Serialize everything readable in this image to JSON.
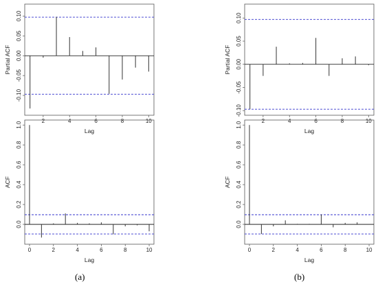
{
  "panel_labels": {
    "a": "(a)",
    "b": "(b)"
  },
  "colors": {
    "bars": "#333333",
    "confidence_band": "#3333cc",
    "axis": "#555555"
  },
  "chart_data": [
    {
      "id": "a-top",
      "type": "bar",
      "xlabel": "Lag",
      "ylabel": "Partial ACF",
      "xlim": [
        0.6,
        10.4
      ],
      "ylim": [
        -0.15,
        0.13
      ],
      "xticks": [
        2,
        4,
        6,
        8,
        10
      ],
      "yticks": [
        -0.1,
        -0.05,
        0.0,
        0.05,
        0.1
      ],
      "ytick_labels": [
        "-0.10",
        "-0.05",
        "0.00",
        "0.05",
        "0.10"
      ],
      "confidence": [
        0.097,
        -0.097
      ],
      "x": [
        1,
        2,
        3,
        4,
        5,
        6,
        7,
        8,
        9,
        10
      ],
      "values": [
        -0.133,
        -0.005,
        0.098,
        0.047,
        0.012,
        0.021,
        -0.096,
        -0.06,
        -0.03,
        -0.04
      ]
    },
    {
      "id": "a-bottom",
      "type": "bar",
      "xlabel": "Lag",
      "ylabel": "ACF",
      "xlim": [
        -0.4,
        10.4
      ],
      "ylim": [
        -0.2,
        1.05
      ],
      "xticks": [
        0,
        2,
        4,
        6,
        8,
        10
      ],
      "yticks": [
        0.0,
        0.2,
        0.4,
        0.6,
        0.8,
        1.0
      ],
      "ytick_labels": [
        "0.0",
        "0.2",
        "0.4",
        "0.6",
        "0.8",
        "1.0"
      ],
      "confidence": [
        0.097,
        -0.097
      ],
      "x": [
        0,
        1,
        2,
        3,
        4,
        5,
        6,
        7,
        8,
        9,
        10
      ],
      "values": [
        1.0,
        -0.133,
        0.01,
        0.11,
        0.015,
        0.01,
        0.02,
        -0.1,
        -0.02,
        -0.01,
        -0.07
      ]
    },
    {
      "id": "b-top",
      "type": "bar",
      "xlabel": "Lag",
      "ylabel": "Partial ACF",
      "xlim": [
        0.6,
        10.4
      ],
      "ylim": [
        -0.11,
        0.13
      ],
      "xticks": [
        2,
        4,
        6,
        8,
        10
      ],
      "yticks": [
        -0.1,
        -0.05,
        0.0,
        0.05,
        0.1
      ],
      "ytick_labels": [
        "-0.10",
        "-0.05",
        "0.00",
        "0.05",
        "0.10"
      ],
      "confidence": [
        0.097,
        -0.097
      ],
      "x": [
        1,
        2,
        3,
        4,
        5,
        6,
        7,
        8,
        9,
        10
      ],
      "values": [
        -0.097,
        -0.025,
        0.038,
        0.002,
        0.003,
        0.057,
        -0.025,
        0.013,
        0.017,
        -0.002
      ]
    },
    {
      "id": "b-bottom",
      "type": "bar",
      "xlabel": "Lag",
      "ylabel": "ACF",
      "xlim": [
        -0.4,
        10.4
      ],
      "ylim": [
        -0.2,
        1.05
      ],
      "xticks": [
        0,
        2,
        4,
        6,
        8,
        10
      ],
      "yticks": [
        -0.0,
        0.2,
        0.4,
        0.6,
        0.8,
        1.0
      ],
      "ytick_labels": [
        "0.0",
        "0.2",
        "0.4",
        "0.6",
        "0.8",
        "1.0"
      ],
      "confidence": [
        0.097,
        -0.097
      ],
      "x": [
        0,
        1,
        2,
        3,
        4,
        5,
        6,
        7,
        8,
        9,
        10
      ],
      "values": [
        1.0,
        -0.097,
        -0.02,
        0.04,
        0.005,
        0.005,
        0.1,
        -0.03,
        0.015,
        0.02,
        0.0
      ]
    }
  ]
}
